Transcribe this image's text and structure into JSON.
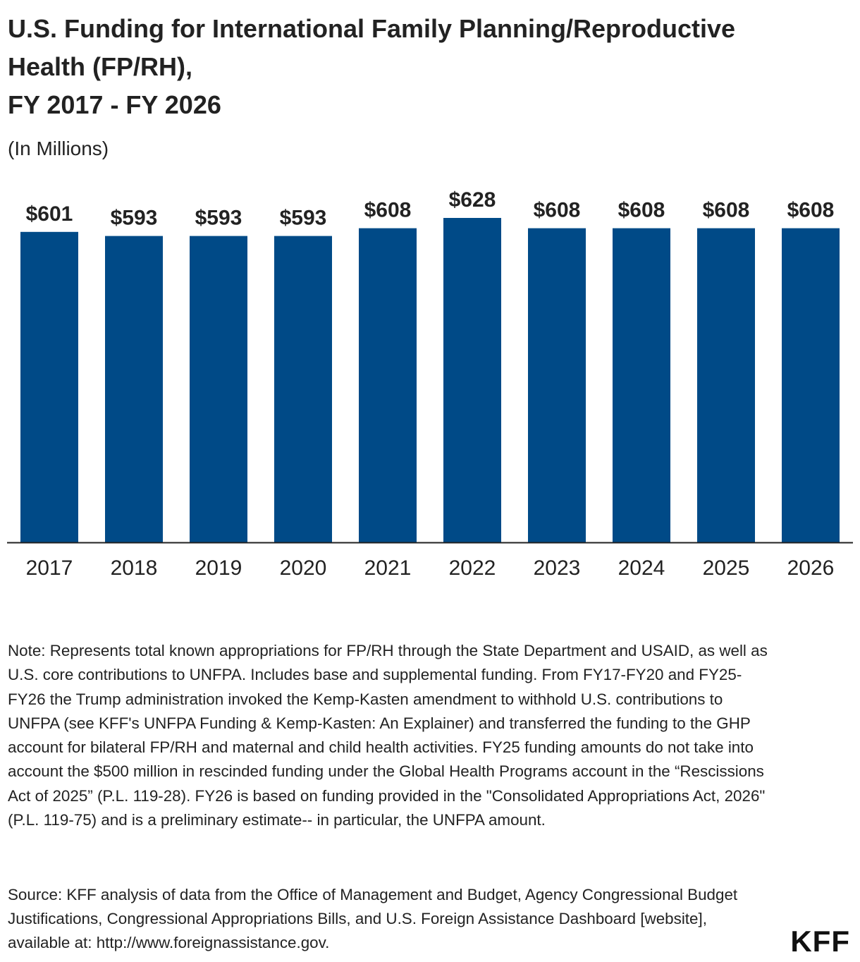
{
  "title_lines": [
    "U.S. Funding for International Family Planning/Reproductive",
    "Health (FP/RH),",
    "FY 2017 - FY 2026"
  ],
  "subtitle": "(In Millions)",
  "colors": {
    "bar": "#004a87",
    "text": "#222222",
    "axis": "#222222"
  },
  "chart_data": {
    "type": "bar",
    "title": "U.S. Funding for International Family Planning/Reproductive Health (FP/RH), FY 2017 - FY 2026",
    "subtitle": "(In Millions)",
    "categories": [
      "2017",
      "2018",
      "2019",
      "2020",
      "2021",
      "2022",
      "2023",
      "2024",
      "2025",
      "2026"
    ],
    "values": [
      601,
      593,
      593,
      593,
      608,
      628,
      608,
      608,
      608,
      608
    ],
    "value_labels": [
      "$601",
      "$593",
      "$593",
      "$593",
      "$608",
      "$628",
      "$608",
      "$608",
      "$608",
      "$608"
    ],
    "xlabel": "",
    "ylabel": "",
    "ylim": [
      0,
      628
    ],
    "grid": false,
    "legend": "none"
  },
  "note": "Note: Represents total known appropriations for FP/RH through the State Department and USAID, as well as U.S. core contributions to UNFPA. Includes base and supplemental funding. From FY17-FY20 and FY25-FY26 the Trump administration invoked the Kemp-Kasten amendment to withhold U.S. contributions to UNFPA (see KFF's UNFPA Funding & Kemp-Kasten: An Explainer) and transferred the funding to the GHP account for bilateral FP/RH and maternal and child health activities. FY25 funding amounts do not take into account the $500 million in rescinded funding under the Global Health Programs account in the “Rescissions Act of 2025” (P.L. 119-28). FY26 is based on funding provided in the \"Consolidated Appropriations Act, 2026\" (P.L. 119-75) and is a preliminary estimate-- in particular, the UNFPA amount.",
  "source": "Source: KFF analysis of data from the Office of Management and Budget, Agency Congressional Budget Justifications, Congressional Appropriations Bills, and U.S. Foreign Assistance Dashboard [website], available at: http://www.foreignassistance.gov.",
  "logo_text": "KFF"
}
